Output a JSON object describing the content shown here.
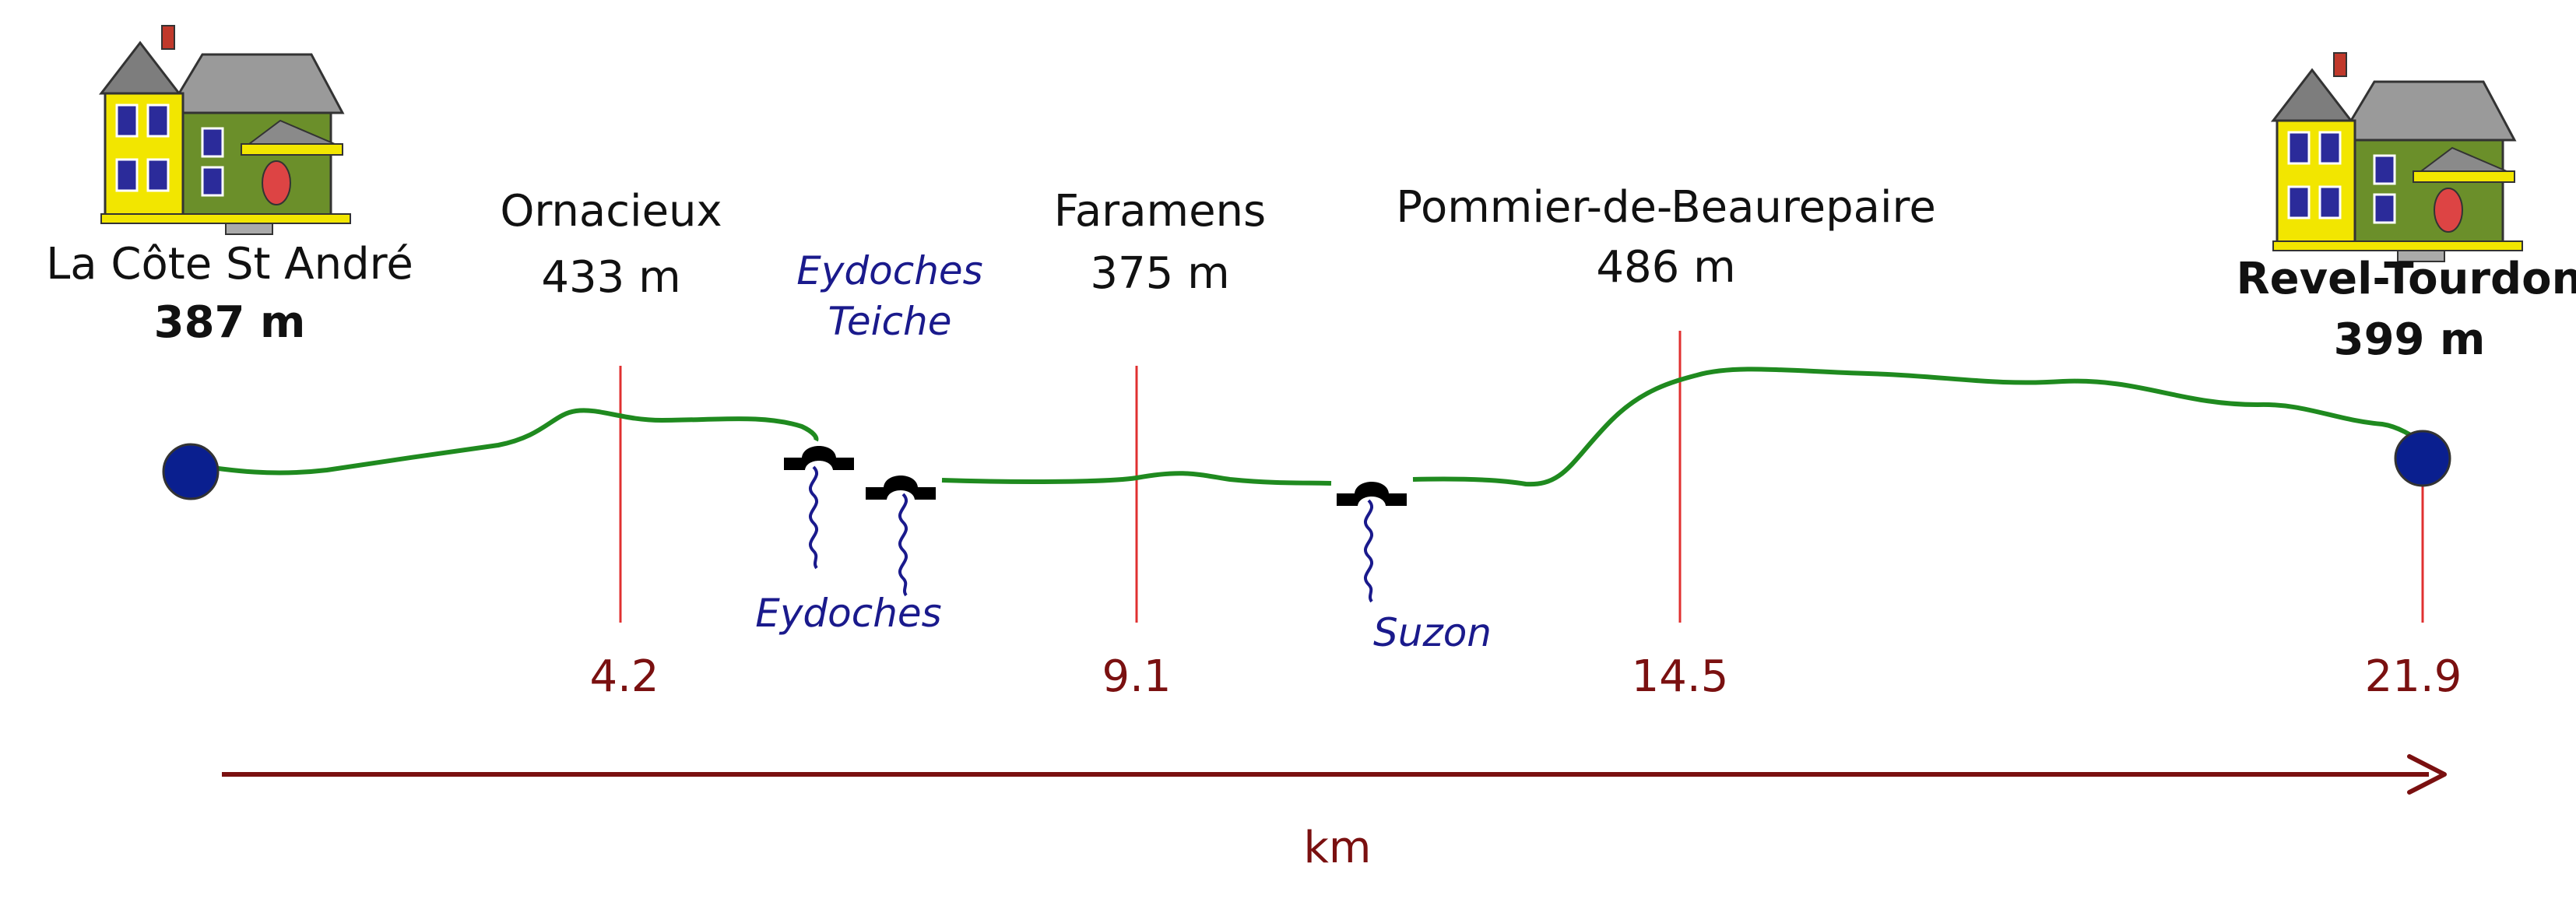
{
  "colors": {
    "profile": "#1f8a1f",
    "marker": "#e03030",
    "endpoint": "#0a1f8f",
    "distance": "#7a1010",
    "river": "#1a1a8c",
    "bridge": "#000000"
  },
  "start": {
    "name": "La Côte St André",
    "altitude": "387 m"
  },
  "end": {
    "name": "Revel-Tourdon",
    "altitude": "399 m"
  },
  "waypoints": [
    {
      "name": "Ornacieux",
      "altitude": "433 m",
      "km": "4.2"
    },
    {
      "name": "Faramens",
      "altitude": "375 m",
      "km": "9.1"
    },
    {
      "name": "Pommier-de-Beaurepaire",
      "altitude": "486 m",
      "km": "14.5"
    }
  ],
  "end_km": "21.9",
  "rivers": {
    "eydoches_teiche_line1": "Eydoches",
    "eydoches_teiche_line2": "Teiche",
    "eydoches": "Eydoches",
    "suzon": "Suzon"
  },
  "axis": {
    "unit": "km"
  },
  "icons": {
    "house": "house-icon",
    "bridge": "bridge-icon",
    "river": "river-squiggle-icon",
    "endpoint": "circle-marker-icon",
    "axis": "arrow-right-icon"
  }
}
